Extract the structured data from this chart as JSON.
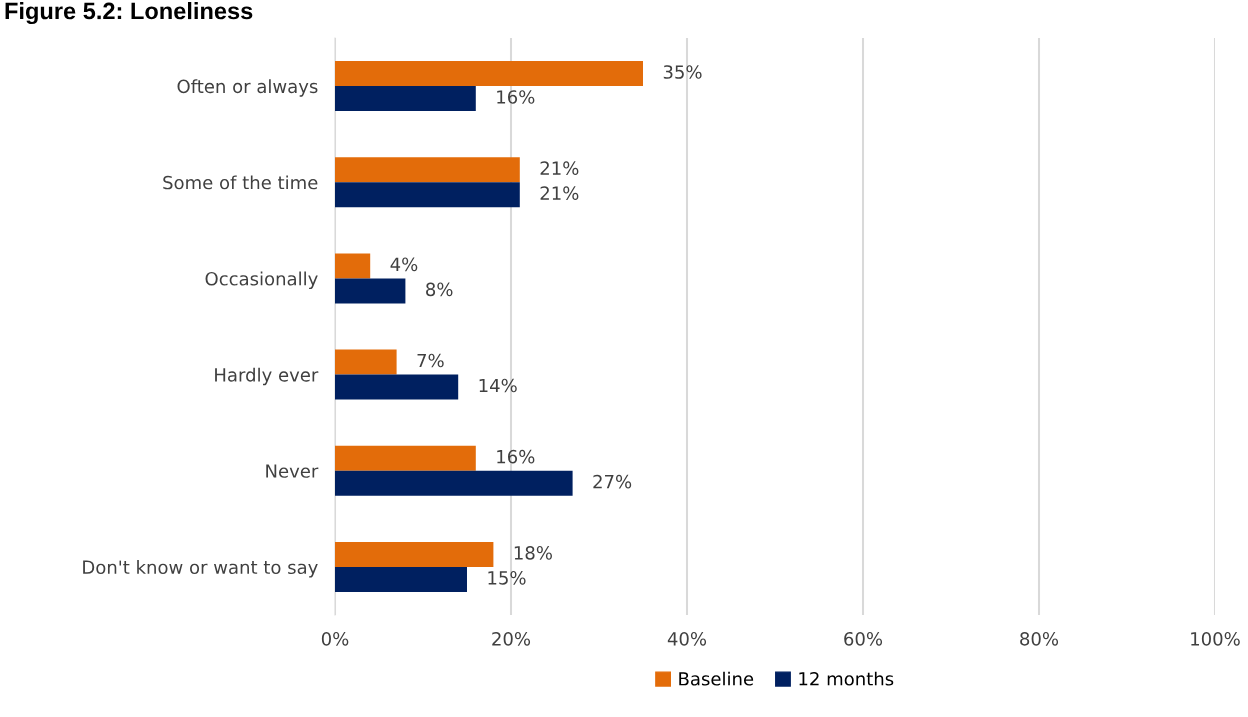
{
  "chart_data": {
    "type": "bar",
    "orientation": "horizontal",
    "title": "Figure 5.2: Loneliness",
    "categories": [
      "Often or always",
      "Some of the time",
      "Occasionally",
      "Hardly ever",
      "Never",
      "Don't know or want to say"
    ],
    "series": [
      {
        "name": "Baseline",
        "color": "#e36c0a",
        "values": [
          35,
          21,
          4,
          7,
          16,
          18
        ],
        "value_labels": [
          "35%",
          "21%",
          "4%",
          "7%",
          "16%",
          "18%"
        ]
      },
      {
        "name": "12 months",
        "color": "#002060",
        "values": [
          16,
          21,
          8,
          14,
          27,
          15
        ],
        "value_labels": [
          "16%",
          "21%",
          "8%",
          "14%",
          "27%",
          "15%"
        ]
      }
    ],
    "xlim": [
      0,
      100
    ],
    "xticks": [
      {
        "value": 0,
        "label": "0%"
      },
      {
        "value": 20,
        "label": "20%"
      },
      {
        "value": 40,
        "label": "40%"
      },
      {
        "value": 60,
        "label": "60%"
      },
      {
        "value": 80,
        "label": "80%"
      },
      {
        "value": 100,
        "label": "100%"
      }
    ],
    "grid": "x",
    "legend": "bottom"
  }
}
